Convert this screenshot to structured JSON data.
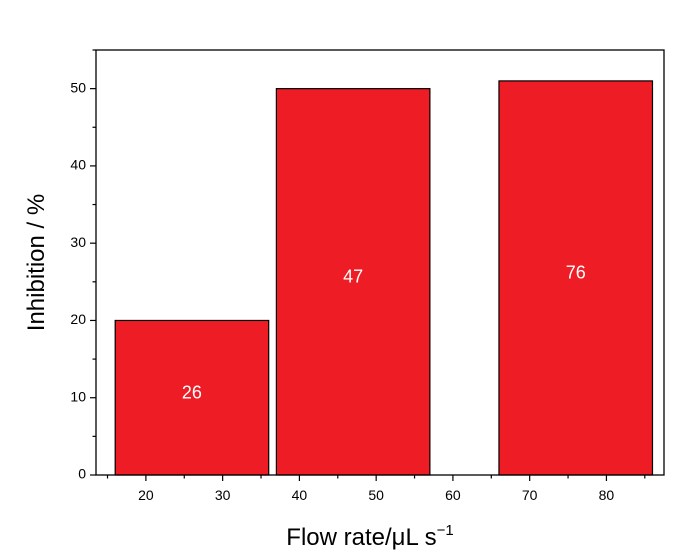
{
  "chart_data": {
    "type": "bar",
    "xlabel": "Flow rate/",
    "xlabel_mu": "μ",
    "xlabel_unit": "L s",
    "xlabel_sup": "−1",
    "ylabel": "Inhibition / %",
    "xlim": [
      13.5,
      87.5
    ],
    "ylim": [
      0,
      55
    ],
    "x_ticks": [
      20,
      30,
      40,
      50,
      60,
      70,
      80
    ],
    "y_ticks": [
      0,
      10,
      20,
      30,
      40,
      50
    ],
    "bars": [
      {
        "x_start": 16,
        "x_end": 36,
        "value": 20,
        "label": "26"
      },
      {
        "x_start": 37,
        "x_end": 57,
        "value": 50,
        "label": "47"
      },
      {
        "x_start": 66,
        "x_end": 86,
        "value": 51,
        "label": "76"
      }
    ],
    "bar_color": "#ee1c25",
    "grid": false
  }
}
